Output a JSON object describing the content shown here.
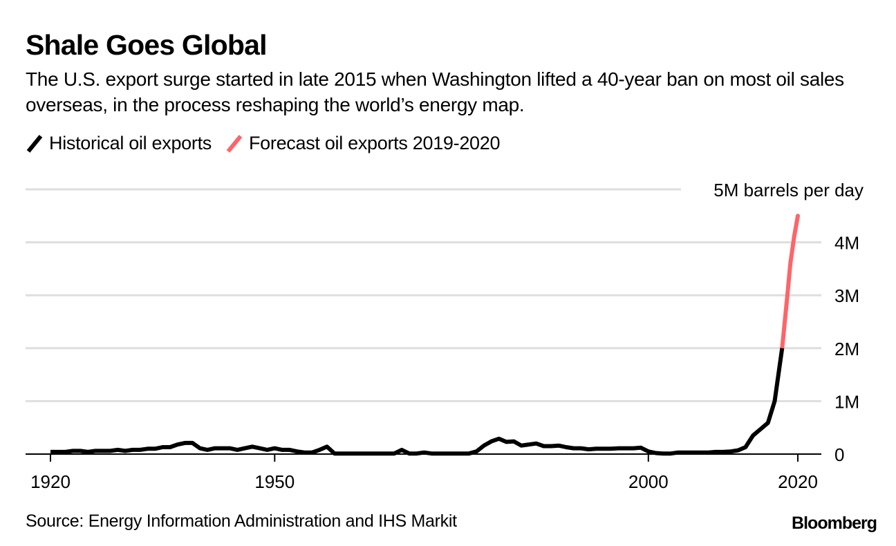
{
  "header": {
    "title": "Shale Goes Global",
    "subtitle": "The U.S. export surge started in late 2015 when Washington lifted a 40-year ban on most oil sales overseas, in the process reshaping the world’s energy map."
  },
  "legend": [
    {
      "label": "Historical oil exports",
      "color": "#000000"
    },
    {
      "label": "Forecast oil exports 2019-2020",
      "color": "#ff6468"
    }
  ],
  "footer": {
    "source": "Source: Energy Information Administration and IHS Markit",
    "brand": "Bloomberg"
  },
  "chart_data": {
    "type": "line",
    "title": "Shale Goes Global",
    "xlabel": "",
    "ylabel": "barrels per day",
    "unit_label": "5M barrels per day",
    "xlim": [
      1916.6,
      2023.3
    ],
    "ylim": [
      0,
      5000000
    ],
    "grid": true,
    "legend_position": "top-left",
    "x_ticks": [
      1920,
      1950,
      2000,
      2020
    ],
    "x_tick_labels": [
      "1920",
      "1950",
      "2000",
      "2020"
    ],
    "y_ticks": [
      0,
      1000000,
      2000000,
      3000000,
      4000000,
      5000000
    ],
    "y_tick_labels": [
      "0",
      "1M",
      "2M",
      "3M",
      "4M",
      "5M barrels per day"
    ],
    "series": [
      {
        "name": "Historical oil exports",
        "color": "#000000",
        "points": [
          [
            1920,
            40000
          ],
          [
            1921,
            40000
          ],
          [
            1922,
            40000
          ],
          [
            1923,
            60000
          ],
          [
            1924,
            60000
          ],
          [
            1925,
            40000
          ],
          [
            1926,
            60000
          ],
          [
            1927,
            60000
          ],
          [
            1928,
            60000
          ],
          [
            1929,
            80000
          ],
          [
            1930,
            60000
          ],
          [
            1931,
            80000
          ],
          [
            1932,
            80000
          ],
          [
            1933,
            100000
          ],
          [
            1934,
            100000
          ],
          [
            1935,
            130000
          ],
          [
            1936,
            130000
          ],
          [
            1937,
            180000
          ],
          [
            1938,
            210000
          ],
          [
            1939,
            210000
          ],
          [
            1940,
            110000
          ],
          [
            1941,
            80000
          ],
          [
            1942,
            110000
          ],
          [
            1943,
            110000
          ],
          [
            1944,
            110000
          ],
          [
            1945,
            80000
          ],
          [
            1946,
            110000
          ],
          [
            1947,
            140000
          ],
          [
            1948,
            110000
          ],
          [
            1949,
            80000
          ],
          [
            1950,
            110000
          ],
          [
            1951,
            80000
          ],
          [
            1952,
            80000
          ],
          [
            1953,
            50000
          ],
          [
            1954,
            30000
          ],
          [
            1955,
            30000
          ],
          [
            1956,
            80000
          ],
          [
            1957,
            140000
          ],
          [
            1958,
            10000
          ],
          [
            1959,
            10000
          ],
          [
            1960,
            10000
          ],
          [
            1961,
            10000
          ],
          [
            1962,
            10000
          ],
          [
            1963,
            10000
          ],
          [
            1964,
            10000
          ],
          [
            1965,
            10000
          ],
          [
            1966,
            10000
          ],
          [
            1967,
            80000
          ],
          [
            1968,
            10000
          ],
          [
            1969,
            10000
          ],
          [
            1970,
            30000
          ],
          [
            1971,
            10000
          ],
          [
            1972,
            10000
          ],
          [
            1973,
            10000
          ],
          [
            1974,
            10000
          ],
          [
            1975,
            10000
          ],
          [
            1976,
            10000
          ],
          [
            1977,
            50000
          ],
          [
            1978,
            160000
          ],
          [
            1979,
            240000
          ],
          [
            1980,
            290000
          ],
          [
            1981,
            230000
          ],
          [
            1982,
            240000
          ],
          [
            1983,
            160000
          ],
          [
            1984,
            180000
          ],
          [
            1985,
            200000
          ],
          [
            1986,
            150000
          ],
          [
            1987,
            150000
          ],
          [
            1988,
            160000
          ],
          [
            1989,
            130000
          ],
          [
            1990,
            110000
          ],
          [
            1991,
            110000
          ],
          [
            1992,
            90000
          ],
          [
            1993,
            100000
          ],
          [
            1994,
            100000
          ],
          [
            1995,
            100000
          ],
          [
            1996,
            110000
          ],
          [
            1997,
            110000
          ],
          [
            1998,
            110000
          ],
          [
            1999,
            120000
          ],
          [
            2000,
            50000
          ],
          [
            2001,
            20000
          ],
          [
            2002,
            10000
          ],
          [
            2003,
            10000
          ],
          [
            2004,
            30000
          ],
          [
            2005,
            30000
          ],
          [
            2006,
            30000
          ],
          [
            2007,
            30000
          ],
          [
            2008,
            30000
          ],
          [
            2009,
            40000
          ],
          [
            2010,
            40000
          ],
          [
            2011,
            50000
          ],
          [
            2012,
            70000
          ],
          [
            2013,
            130000
          ],
          [
            2014,
            350000
          ],
          [
            2015,
            470000
          ],
          [
            2016,
            590000
          ],
          [
            2016.9,
            1000000
          ],
          [
            2017.4,
            1500000
          ],
          [
            2017.9,
            2000000
          ]
        ]
      },
      {
        "name": "Forecast oil exports 2019-2020",
        "color": "#ff6468",
        "points": [
          [
            2017.9,
            2000000
          ],
          [
            2018.6,
            3000000
          ],
          [
            2019.0,
            3600000
          ],
          [
            2019.5,
            4100000
          ],
          [
            2020.0,
            4500000
          ]
        ]
      }
    ]
  }
}
